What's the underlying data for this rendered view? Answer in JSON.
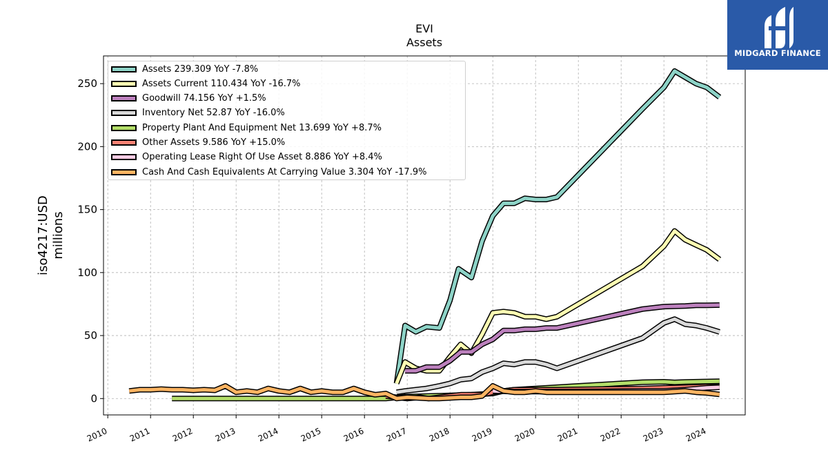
{
  "chart_data": {
    "type": "line",
    "title": "EVI",
    "subtitle": "Assets",
    "xlabel": "",
    "ylabel_line1": "iso4217:USD",
    "ylabel_line2": "millions",
    "xlim": [
      2009.9,
      2024.9
    ],
    "ylim": [
      -13,
      272
    ],
    "x_ticks": [
      2010,
      2011,
      2012,
      2013,
      2014,
      2015,
      2016,
      2017,
      2018,
      2019,
      2020,
      2021,
      2022,
      2023,
      2024
    ],
    "x_tick_labels": [
      "2010",
      "2011",
      "2012",
      "2013",
      "2014",
      "2015",
      "2016",
      "2017",
      "2018",
      "2019",
      "2020",
      "2021",
      "2022",
      "2023",
      "2024"
    ],
    "y_ticks": [
      0,
      50,
      100,
      150,
      200,
      250
    ],
    "y_tick_labels": [
      "0",
      "50",
      "100",
      "150",
      "200",
      "250"
    ],
    "grid": true,
    "legend_position": "top-left",
    "series": [
      {
        "name": "Assets",
        "legend": "Assets  239.309 YoY -7.8%",
        "color": "#8dd3c7",
        "x": [
          2016.75,
          2016.95,
          2017.2,
          2017.45,
          2017.75,
          2018.0,
          2018.2,
          2018.5,
          2018.75,
          2019.0,
          2019.25,
          2019.5,
          2019.75,
          2020.0,
          2020.25,
          2020.5,
          2022.5,
          2023.0,
          2023.25,
          2023.5,
          2023.75,
          2024.0,
          2024.3
        ],
        "y": [
          12,
          58,
          53,
          57,
          56,
          78,
          103,
          96,
          125,
          145,
          155,
          155,
          159,
          158,
          158,
          160,
          230,
          247,
          260,
          255,
          250,
          247,
          239.3
        ]
      },
      {
        "name": "Assets Current",
        "legend": "Assets Current  110.434 YoY -16.7%",
        "color": "#ffffb3",
        "x": [
          2016.75,
          2016.95,
          2017.2,
          2017.45,
          2017.75,
          2018.0,
          2018.25,
          2018.5,
          2018.75,
          2019.0,
          2019.25,
          2019.5,
          2019.75,
          2020.0,
          2020.25,
          2020.5,
          2022.5,
          2023.0,
          2023.25,
          2023.5,
          2023.75,
          2024.0,
          2024.3
        ],
        "y": [
          12,
          29,
          24,
          22,
          22,
          33,
          43,
          36,
          51,
          68,
          69,
          68,
          65,
          65,
          63,
          65,
          105,
          121,
          133,
          126,
          122,
          118,
          110.4
        ]
      },
      {
        "name": "Goodwill",
        "legend": "Goodwill  74.156 YoY +1.5%",
        "color": "#bc80bd",
        "x": [
          2016.95,
          2017.2,
          2017.45,
          2017.75,
          2018.0,
          2018.25,
          2018.5,
          2018.75,
          2019.0,
          2019.25,
          2019.5,
          2019.75,
          2020.0,
          2020.25,
          2020.5,
          2022.5,
          2023.0,
          2023.5,
          2023.75,
          2024.0,
          2024.3
        ],
        "y": [
          22,
          22,
          25,
          25,
          30,
          37,
          37,
          43,
          47,
          54,
          54,
          55,
          55,
          56,
          56,
          71,
          73,
          73.5,
          74,
          74,
          74.2
        ]
      },
      {
        "name": "Inventory Net",
        "legend": "Inventory Net  52.87 YoY -16.0%",
        "color": "#d9d9d9",
        "x": [
          2016.75,
          2016.95,
          2017.2,
          2017.45,
          2017.75,
          2018.0,
          2018.25,
          2018.5,
          2018.75,
          2019.0,
          2019.25,
          2019.5,
          2019.75,
          2020.0,
          2020.25,
          2020.5,
          2022.5,
          2023.0,
          2023.25,
          2023.5,
          2023.75,
          2024.0,
          2024.3
        ],
        "y": [
          5,
          6,
          7,
          8,
          10,
          12,
          15,
          16,
          21,
          24,
          28,
          27,
          29,
          29,
          27,
          24,
          48,
          60,
          63,
          59,
          58,
          56,
          52.9
        ]
      },
      {
        "name": "Property Plant And Equipment Net",
        "legend": "Property Plant And Equipment Net  13.699 YoY +8.7%",
        "color": "#b3de69",
        "x": [
          2011.5,
          2016.5,
          2016.95,
          2017.5,
          2018.0,
          2018.5,
          2019.0,
          2019.25,
          2019.5,
          2020.0,
          2020.5,
          2021.0,
          2022.0,
          2022.5,
          2023.0,
          2023.25,
          2023.5,
          2024.0,
          2024.3
        ],
        "y": [
          0,
          0,
          1.5,
          2,
          2.5,
          3,
          4,
          6,
          7,
          8,
          9,
          10,
          12,
          13,
          13.3,
          12.8,
          13.2,
          13.5,
          13.7
        ]
      },
      {
        "name": "Other Assets",
        "legend": "Other Assets  9.586 YoY +15.0%",
        "color": "#fb8072",
        "x": [
          2016.5,
          2016.75,
          2017.0,
          2017.3,
          2017.5,
          2018.0,
          2018.25,
          2018.5,
          2018.75,
          2019.0,
          2019.25,
          2019.5,
          2019.75,
          2020.0,
          2020.5,
          2022.5,
          2023.0,
          2023.5,
          2024.0,
          2024.3
        ],
        "y": [
          2,
          1,
          0,
          1,
          0,
          2,
          3,
          3,
          3,
          5,
          6,
          7,
          7,
          7,
          7,
          8,
          8.5,
          9,
          9.5,
          9.6
        ]
      },
      {
        "name": "Operating Lease Right Of Use Asset",
        "legend": "Operating Lease Right Of Use Asset  8.886 YoY +8.4%",
        "color": "#fccde5",
        "x": [
          2019.0,
          2019.5,
          2020.0,
          2020.5,
          2022.5,
          2023.0,
          2023.5,
          2024.0,
          2024.3
        ],
        "y": [
          6,
          5.5,
          5.5,
          5.5,
          6,
          6,
          7,
          8.5,
          8.9
        ]
      },
      {
        "name": "Cash And Cash Equivalents At Carrying Value",
        "legend": "Cash And Cash Equivalents At Carrying Value  3.304 YoY -17.9%",
        "color": "#fdb462",
        "x": [
          2010.5,
          2010.75,
          2011.0,
          2011.25,
          2011.5,
          2011.75,
          2012.0,
          2012.25,
          2012.5,
          2012.75,
          2013.0,
          2013.25,
          2013.5,
          2013.75,
          2014.0,
          2014.25,
          2014.5,
          2014.75,
          2015.0,
          2015.25,
          2015.5,
          2015.75,
          2016.0,
          2016.25,
          2016.5,
          2016.75,
          2017.0,
          2017.25,
          2017.5,
          2017.75,
          2018.0,
          2018.25,
          2018.5,
          2018.75,
          2019.0,
          2019.25,
          2019.5,
          2019.75,
          2020.0,
          2020.25,
          2022.5,
          2023.0,
          2023.25,
          2023.5,
          2023.75,
          2024.0,
          2024.3
        ],
        "y": [
          6,
          7,
          7,
          7.5,
          7,
          7,
          6.5,
          7,
          6.5,
          10,
          5,
          6,
          5,
          8,
          6,
          5,
          8,
          5,
          6,
          5,
          5,
          8,
          5,
          3,
          4,
          0,
          1,
          0.5,
          0,
          0,
          0.5,
          1,
          1,
          2,
          10,
          6,
          5,
          5,
          6,
          5,
          5,
          5,
          5.5,
          6,
          5,
          4.5,
          3.3
        ]
      }
    ]
  },
  "logo": {
    "text": "MIDGARD FINANCE",
    "background": "#2a5aa8",
    "icon": "midgard-logo-icon"
  }
}
